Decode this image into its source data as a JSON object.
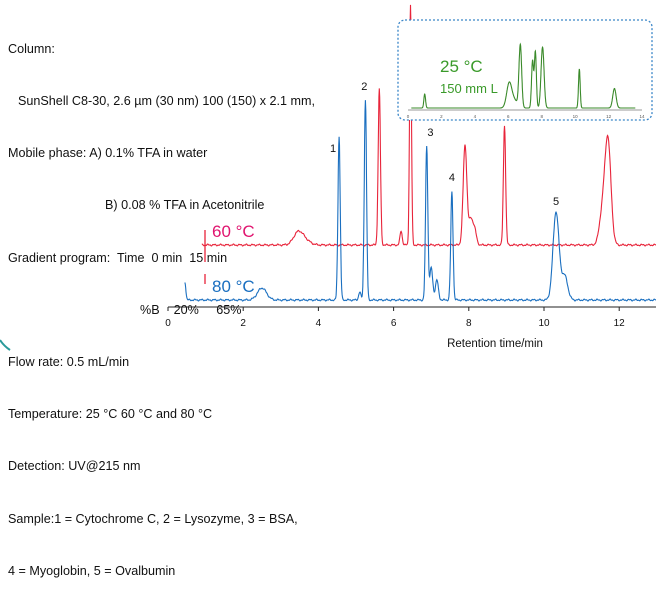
{
  "conditions": {
    "column_label": "Column:",
    "column_detail": "SunShell C8-30, 2.6 µm (30 nm) 100 (150) x 2.1 mm,",
    "mobile_phase_a": "Mobile phase: A) 0.1% TFA in water",
    "mobile_phase_b": "B) 0.08 % TFA in Acetonitrile",
    "gradient_line1": "Gradient program:  Time  0 min  15 min",
    "gradient_line2": "%B    20%     65%",
    "flow_rate": "Flow rate: 0.5 mL/min",
    "temperature": "Temperature: 25 °C 60 °C and 80 °C",
    "detection": "Detection: UV@215 nm",
    "sample_line1": "Sample:1 = Cytochrome C, 2 = Lysozyme, 3 = BSA,",
    "sample_line2": "4 = Myoglobin, 5 = Ovalbumin"
  },
  "colors": {
    "trace_80c": "#1a6fc0",
    "trace_60c": "#e8243a",
    "trace_25c": "#3a8a2a",
    "label_60c": "#e0146f",
    "label_80c": "#1a6fc0",
    "label_25c": "#3a9a2a",
    "inset_border": "#3a86c8"
  },
  "chart_data": {
    "type": "line",
    "xlabel": "Retention time/min",
    "xlim": [
      0,
      13
    ],
    "xticks": [
      "0",
      "2",
      "4",
      "6",
      "8",
      "10",
      "12"
    ],
    "series": [
      {
        "name": "80 °C",
        "peaks": [
          {
            "x": 0.45,
            "h": 0.09,
            "w": 0.025
          },
          {
            "x": 2.5,
            "h": 0.06,
            "w": 0.12
          },
          {
            "x": 4.55,
            "h": 0.82,
            "w": 0.03
          },
          {
            "x": 5.25,
            "h": 1.0,
            "w": 0.03
          },
          {
            "x": 5.1,
            "h": 0.04,
            "w": 0.03
          },
          {
            "x": 6.88,
            "h": 0.77,
            "w": 0.03
          },
          {
            "x": 7.0,
            "h": 0.16,
            "w": 0.04
          },
          {
            "x": 7.15,
            "h": 0.1,
            "w": 0.04
          },
          {
            "x": 7.55,
            "h": 0.54,
            "w": 0.03
          },
          {
            "x": 10.32,
            "h": 0.44,
            "w": 0.08
          },
          {
            "x": 10.55,
            "h": 0.12,
            "w": 0.08
          }
        ]
      },
      {
        "name": "60 °C",
        "peaks": [
          {
            "x": 3.45,
            "h": 0.05,
            "w": 0.12
          },
          {
            "x": 3.6,
            "h": 0.03,
            "w": 0.15
          },
          {
            "x": 5.62,
            "h": 0.78,
            "w": 0.03
          },
          {
            "x": 6.2,
            "h": 0.07,
            "w": 0.03
          },
          {
            "x": 6.45,
            "h": 1.2,
            "w": 0.025
          },
          {
            "x": 7.9,
            "h": 0.5,
            "w": 0.05
          },
          {
            "x": 8.05,
            "h": 0.12,
            "w": 0.05
          },
          {
            "x": 8.15,
            "h": 0.08,
            "w": 0.05
          },
          {
            "x": 8.95,
            "h": 0.6,
            "w": 0.03
          },
          {
            "x": 11.7,
            "h": 0.52,
            "w": 0.08
          },
          {
            "x": 11.55,
            "h": 0.15,
            "w": 0.08
          }
        ]
      },
      {
        "name": "25 °C",
        "peaks": [
          {
            "x": 1.0,
            "h": 0.18,
            "w": 0.05
          },
          {
            "x": 6.05,
            "h": 0.3,
            "w": 0.15
          },
          {
            "x": 6.35,
            "h": 0.1,
            "w": 0.2
          },
          {
            "x": 6.72,
            "h": 0.8,
            "w": 0.08
          },
          {
            "x": 7.45,
            "h": 0.6,
            "w": 0.06
          },
          {
            "x": 7.62,
            "h": 0.72,
            "w": 0.06
          },
          {
            "x": 8.05,
            "h": 0.78,
            "w": 0.09
          },
          {
            "x": 10.25,
            "h": 0.5,
            "w": 0.05
          },
          {
            "x": 12.35,
            "h": 0.25,
            "w": 0.1
          }
        ]
      }
    ],
    "peak_labels": [
      {
        "text": "1",
        "x": 4.55
      },
      {
        "text": "2",
        "x": 5.22
      },
      {
        "text": "3",
        "x": 6.98
      },
      {
        "text": "4",
        "x": 7.55
      },
      {
        "text": "5",
        "x": 10.32
      }
    ],
    "trace_labels": {
      "t60": "60 °C",
      "t80": "80 °C"
    },
    "inset": {
      "label_temp": "25 °C",
      "label_len": "150 mm L",
      "ticks": [
        "0",
        "2",
        "4",
        "6",
        "8",
        "10",
        "12",
        "14"
      ],
      "xlim": [
        0,
        14
      ]
    }
  }
}
